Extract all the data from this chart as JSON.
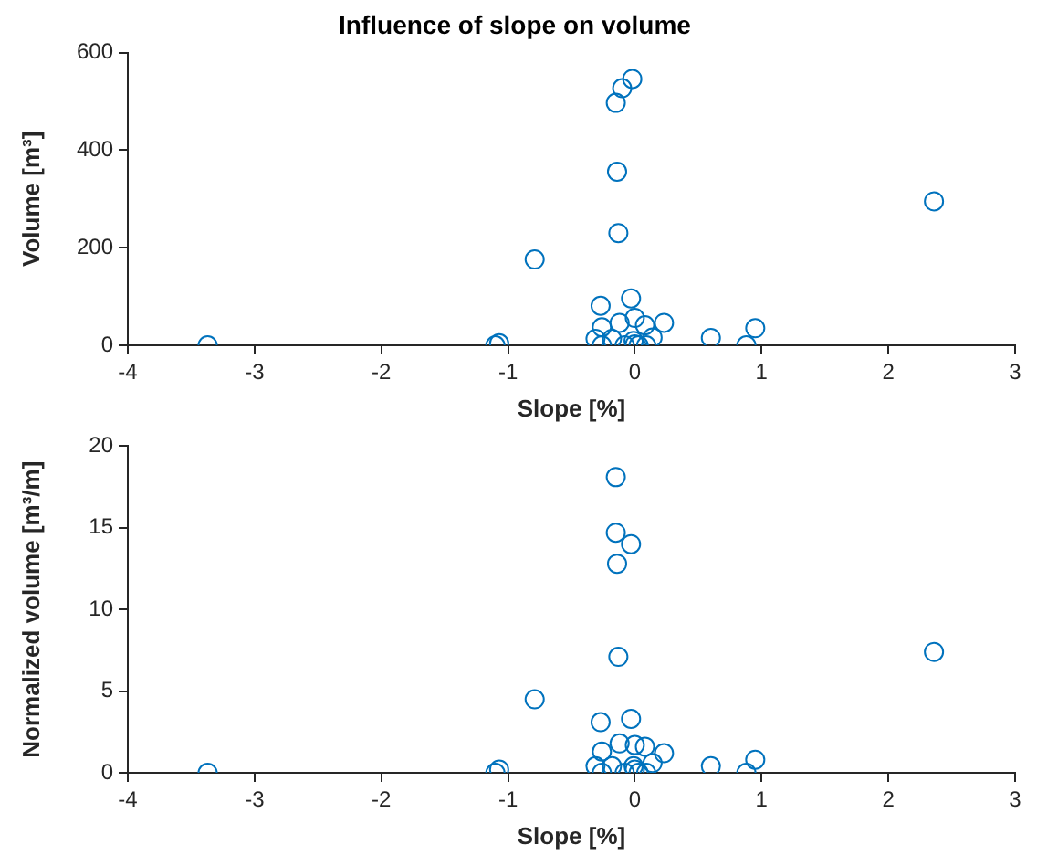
{
  "chart_data": [
    {
      "type": "scatter",
      "title": "Influence of slope on volume",
      "xlabel": "Slope [%]",
      "ylabel": "Volume [m³]",
      "color": "#0072bd",
      "marker": "circle",
      "legend": false,
      "x": [
        -3.37,
        -1.1,
        -1.07,
        -0.79,
        -0.31,
        -0.27,
        -0.26,
        -0.26,
        -0.18,
        -0.15,
        -0.14,
        -0.13,
        -0.12,
        -0.1,
        -0.08,
        -0.03,
        -0.02,
        -0.01,
        0.0,
        0.0,
        0.03,
        0.08,
        0.09,
        0.14,
        0.23,
        0.6,
        0.88,
        0.95,
        2.36
      ],
      "values": [
        0,
        0,
        4,
        176,
        13,
        81,
        37,
        0,
        13,
        497,
        356,
        230,
        46,
        527,
        0,
        96,
        546,
        9,
        56,
        2,
        0,
        41,
        0,
        16,
        46,
        15,
        0,
        35,
        295
      ],
      "xlim": [
        -4,
        3
      ],
      "xticks": [
        -4,
        -3,
        -2,
        -1,
        0,
        1,
        2,
        3
      ],
      "ylim": [
        0,
        600
      ],
      "yticks": [
        0,
        200,
        400,
        600
      ]
    },
    {
      "type": "scatter",
      "xlabel": "Slope [%]",
      "ylabel": "Normalized volume [m³/m]",
      "color": "#0072bd",
      "marker": "circle",
      "legend": false,
      "x": [
        -3.37,
        -1.1,
        -1.07,
        -0.79,
        -0.31,
        -0.27,
        -0.26,
        -0.26,
        -0.18,
        -0.15,
        -0.15,
        -0.14,
        -0.13,
        -0.12,
        -0.08,
        -0.03,
        -0.03,
        -0.01,
        0.0,
        0.0,
        0.03,
        0.08,
        0.09,
        0.14,
        0.23,
        0.6,
        0.88,
        0.95,
        2.36
      ],
      "values": [
        0,
        0,
        0.2,
        4.5,
        0.4,
        3.1,
        1.3,
        0,
        0.4,
        18.1,
        14.7,
        12.8,
        7.1,
        1.8,
        0,
        3.3,
        14.0,
        0.4,
        1.7,
        0.2,
        0,
        1.6,
        0,
        0.6,
        1.2,
        0.4,
        0,
        0.8,
        7.4
      ],
      "xlim": [
        -4,
        3
      ],
      "xticks": [
        -4,
        -3,
        -2,
        -1,
        0,
        1,
        2,
        3
      ],
      "ylim": [
        0,
        20
      ],
      "yticks": [
        0,
        5,
        10,
        15,
        20
      ]
    }
  ]
}
